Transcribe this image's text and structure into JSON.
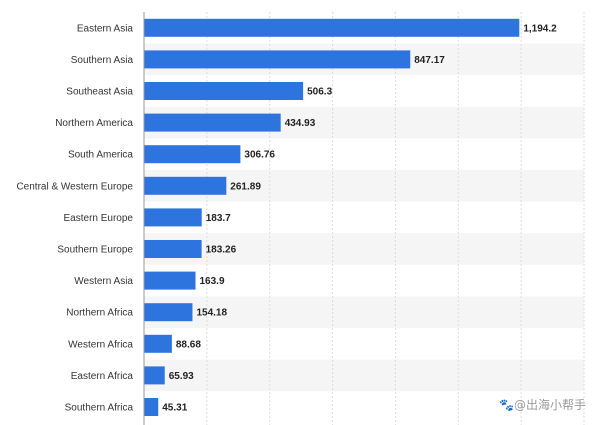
{
  "chart_data": {
    "type": "bar",
    "orientation": "horizontal",
    "categories": [
      "Eastern Asia",
      "Southern Asia",
      "Southeast Asia",
      "Northern America",
      "South America",
      "Central & Western Europe",
      "Eastern Europe",
      "Southern Europe",
      "Western Asia",
      "Northern Africa",
      "Western Africa",
      "Eastern Africa",
      "Southern Africa"
    ],
    "values": [
      1194.2,
      847.17,
      506.3,
      434.93,
      306.76,
      261.89,
      183.7,
      183.26,
      163.9,
      154.18,
      88.68,
      65.93,
      45.31
    ],
    "value_labels": [
      "1,194.2",
      "847.17",
      "506.3",
      "434.93",
      "306.76",
      "261.89",
      "183.7",
      "183.26",
      "163.9",
      "154.18",
      "88.68",
      "65.93",
      "45.31"
    ],
    "xlim": [
      0,
      1400
    ],
    "grid": true,
    "bar_color": "#2e74de",
    "stripe_color": "#f5f5f5"
  },
  "watermark": {
    "icon": "paw-icon",
    "text": "@出海小帮手"
  }
}
